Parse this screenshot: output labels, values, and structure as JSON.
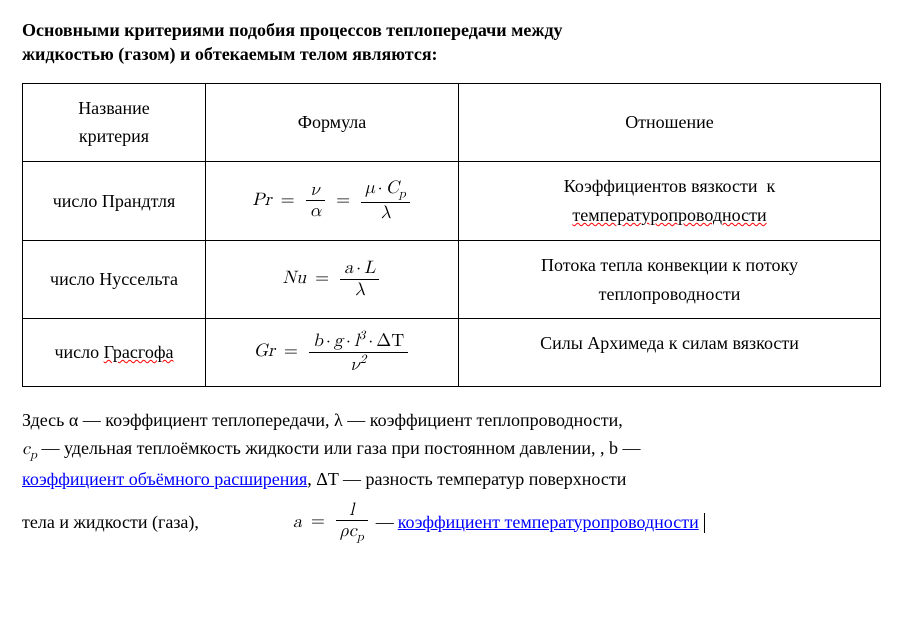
{
  "heading_line1": "Основными критериями подобия процессов теплопередачи между",
  "heading_line2": "жидкостью (газом) и обтекаемым телом являются:",
  "table": {
    "headers": {
      "name_l1": "Название",
      "name_l2": "критерия",
      "formula": "Формула",
      "ratio": "Отношение"
    },
    "rows": [
      {
        "name": "число Прандтля",
        "ratio_l1_pre": "Коэффициентов вязкости",
        "ratio_l1_post": "к",
        "ratio_l2": "температуропроводности",
        "formula": {
          "lhs": "Pr",
          "eq": "=",
          "f1_num": "ν",
          "f1_den": "α",
          "f2_num_a": "μ",
          "f2_num_op": "·",
          "f2_num_b": "C",
          "f2_num_b_sub": "p",
          "f2_den": "λ"
        }
      },
      {
        "name": "число Нуссельта",
        "ratio_l1": "Потока тепла конвекции к потоку",
        "ratio_l2": "теплопроводности",
        "formula": {
          "lhs": "Nu",
          "eq": "=",
          "num_a": "a",
          "num_op": "·",
          "num_b": "L",
          "den": "λ"
        }
      },
      {
        "name_pre": "число ",
        "name_wavy": "Грасгофа",
        "ratio_l1": "Силы Архимеда к силам вязкости",
        "formula": {
          "lhs": "Gr",
          "eq": "=",
          "num_seq": "b · g · l",
          "num_a": "b",
          "num_op1": "·",
          "num_b": "g",
          "num_op2": "·",
          "num_c": "l",
          "num_c_sup": "3",
          "num_op3": "·",
          "num_dt": "ΔT",
          "den_base": "ν",
          "den_sup": "2"
        }
      }
    ]
  },
  "legend": {
    "p1_a": "Здесь α — коэффициент теплопередачи, λ — коэффициент теплопроводности,",
    "p2_pre_italic": "c",
    "p2_pre_sub": "p",
    "p2_a": " — удельная теплоёмкость жидкости или газа при постоянном давлении, , b —",
    "p3_link1": "коэффициент объёмного расширения",
    "p3_mid": ", ΔT — разность температур поверхности",
    "last_left": "тела и жидкости (газа),",
    "formula_a": {
      "lhs": "a",
      "eq": "=",
      "num": "l",
      "den_a": "ρ",
      "den_b": "c",
      "den_b_sub": "p"
    },
    "last_mid": " — ",
    "last_link": "коэффициент температуропроводности"
  },
  "colors": {
    "text": "#000000",
    "wavy": "#ff0000",
    "link": "#0000ff",
    "bg": "#ffffff"
  }
}
